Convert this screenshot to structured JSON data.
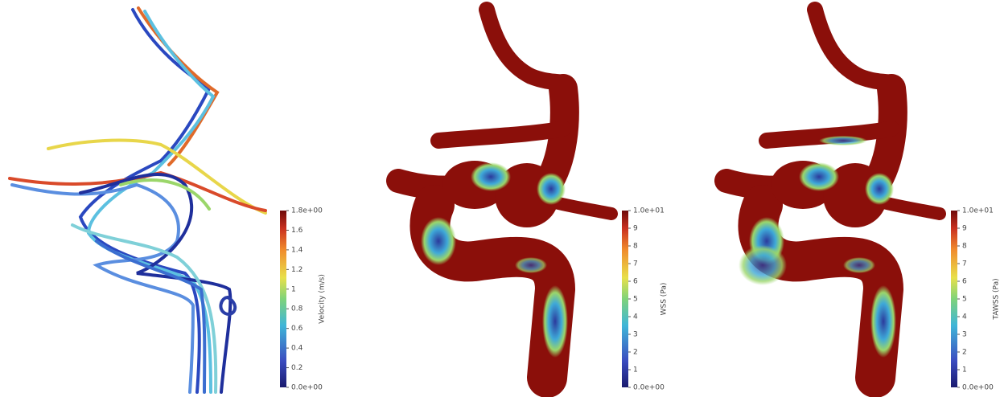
{
  "panels": [
    {
      "colorbar": {
        "title": "Velocity (m/s)",
        "lim": [
          0,
          1.8
        ],
        "ticks": [
          {
            "value": 1.8,
            "label": "1.8e+00"
          },
          1.6,
          1.4,
          1.2,
          1,
          0.8,
          0.6,
          0.4,
          0.2,
          {
            "value": 0,
            "label": "0.0e+00"
          }
        ]
      }
    },
    {
      "colorbar": {
        "title": "WSS (Pa)",
        "lim": [
          0,
          10
        ],
        "ticks": [
          {
            "value": 10,
            "label": "1.0e+01"
          },
          9,
          8,
          7,
          6,
          5,
          4,
          3,
          2,
          1,
          {
            "value": 0,
            "label": "0.0e+00"
          }
        ]
      }
    },
    {
      "colorbar": {
        "title": "TAWSS (Pa)",
        "lim": [
          0,
          10
        ],
        "ticks": [
          {
            "value": 10,
            "label": "1.0e+01"
          },
          9,
          8,
          7,
          6,
          5,
          4,
          3,
          2,
          1,
          {
            "value": 0,
            "label": "0.0e+00"
          }
        ]
      }
    }
  ]
}
